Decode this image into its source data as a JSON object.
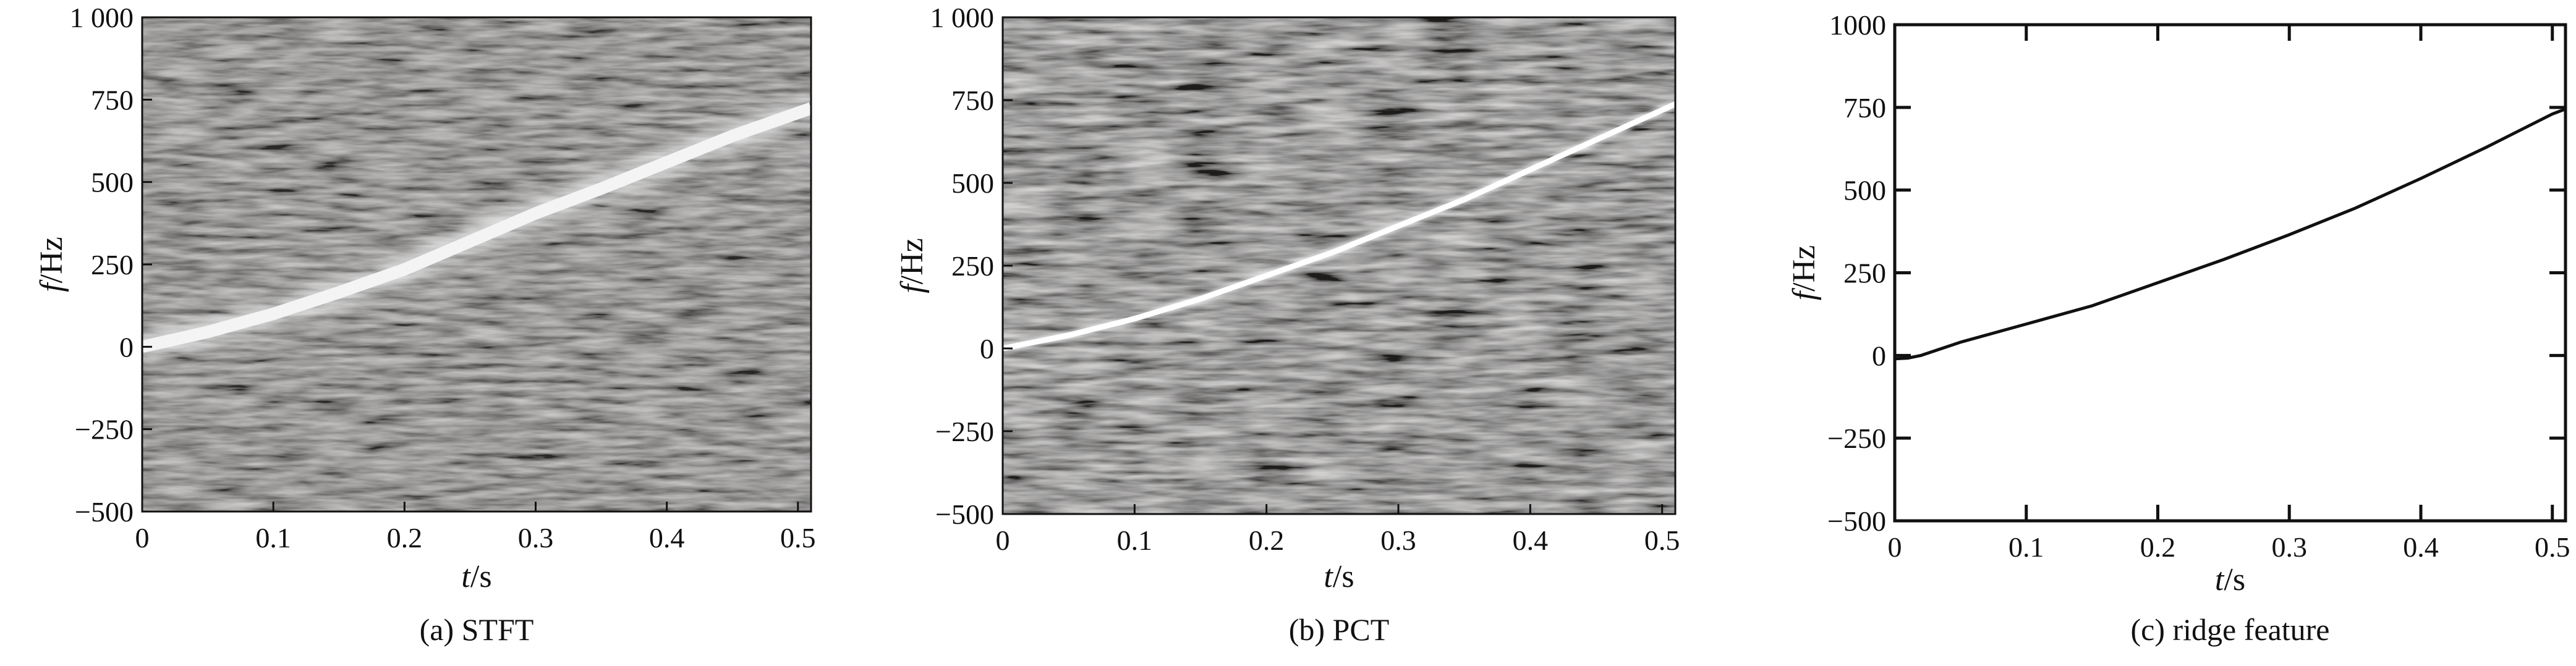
{
  "chart_data": [
    {
      "type": "heatmap",
      "caption": "(a) STFT",
      "xlabel_var": "t",
      "xlabel_unit": "/s",
      "ylabel_var": "f",
      "ylabel_unit": "/Hz",
      "xlim": [
        0,
        0.51
      ],
      "ylim": [
        -500,
        1000
      ],
      "xticks": [
        0,
        0.1,
        0.2,
        0.3,
        0.4,
        0.5
      ],
      "xtick_labels": [
        "0",
        "0.1",
        "0.2",
        "0.3",
        "0.4",
        "0.5"
      ],
      "yticks": [
        -500,
        -250,
        0,
        250,
        500,
        750,
        1000
      ],
      "ytick_labels": [
        "−500",
        "−250",
        "0",
        "250",
        "500",
        "750",
        "1 000"
      ],
      "ridge": {
        "x": [
          0,
          0.05,
          0.1,
          0.15,
          0.2,
          0.25,
          0.3,
          0.35,
          0.4,
          0.45,
          0.5
        ],
        "y": [
          0,
          45,
          100,
          165,
          235,
          320,
          405,
          480,
          560,
          640,
          710
        ]
      },
      "background": "#6b6866",
      "ridge_color": "#f4f4f4"
    },
    {
      "type": "heatmap",
      "caption": "(b) PCT",
      "xlabel_var": "t",
      "xlabel_unit": "/s",
      "ylabel_var": "f",
      "ylabel_unit": "/Hz",
      "xlim": [
        0,
        0.51
      ],
      "ylim": [
        -500,
        1000
      ],
      "xticks": [
        0,
        0.1,
        0.2,
        0.3,
        0.4,
        0.5
      ],
      "xtick_labels": [
        "0",
        "0.1",
        "0.2",
        "0.3",
        "0.4",
        "0.5"
      ],
      "yticks": [
        -500,
        -250,
        0,
        250,
        500,
        750,
        1000
      ],
      "ytick_labels": [
        "−500",
        "−250",
        "0",
        "250",
        "500",
        "750",
        "1 000"
      ],
      "ridge": {
        "x": [
          0,
          0.05,
          0.1,
          0.15,
          0.2,
          0.25,
          0.3,
          0.35,
          0.4,
          0.45,
          0.5
        ],
        "y": [
          0,
          40,
          90,
          150,
          220,
          290,
          370,
          450,
          540,
          630,
          720
        ]
      },
      "background": "#625f5d",
      "ridge_color": "#ffffff"
    },
    {
      "type": "line",
      "caption": "(c) ridge feature",
      "xlabel_var": "t",
      "xlabel_unit": "/s",
      "ylabel_var": "f",
      "ylabel_unit": "/Hz",
      "xlim": [
        0,
        0.51
      ],
      "ylim": [
        -500,
        1000
      ],
      "xticks": [
        0,
        0.1,
        0.2,
        0.3,
        0.4,
        0.5
      ],
      "xtick_labels": [
        "0",
        "0.1",
        "0.2",
        "0.3",
        "0.4",
        "0.5"
      ],
      "yticks": [
        -500,
        -250,
        0,
        250,
        500,
        750,
        1000
      ],
      "ytick_labels": [
        "−500",
        "−250",
        "0",
        "250",
        "500",
        "750",
        "1000"
      ],
      "series": [
        {
          "x": [
            0,
            0.01,
            0.02,
            0.05,
            0.1,
            0.15,
            0.2,
            0.25,
            0.3,
            0.35,
            0.4,
            0.45,
            0.5,
            0.51
          ],
          "y": [
            -10,
            -8,
            0,
            40,
            95,
            150,
            220,
            290,
            365,
            445,
            535,
            630,
            730,
            745
          ]
        }
      ],
      "line_color": "#111111"
    }
  ]
}
